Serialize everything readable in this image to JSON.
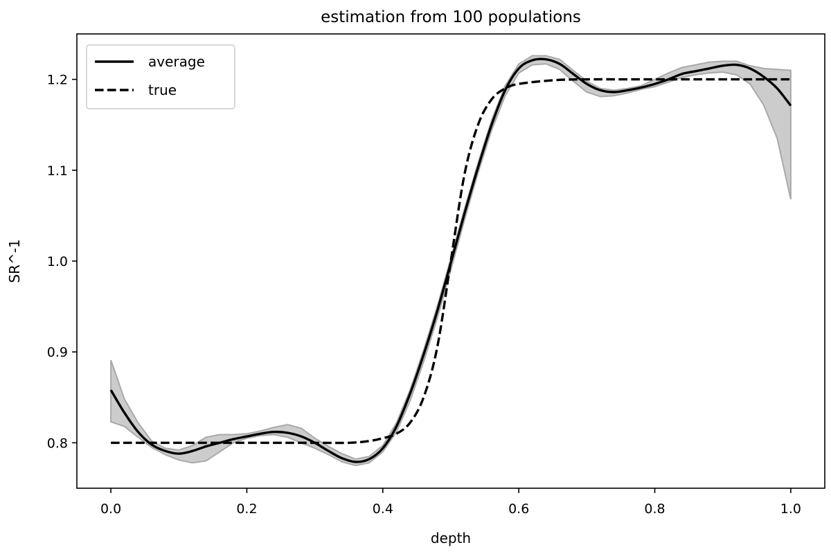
{
  "chart_data": {
    "type": "line",
    "title": "estimation from 100 populations",
    "xlabel": "depth",
    "ylabel": "SR^-1",
    "xlim": [
      -0.05,
      1.05
    ],
    "ylim": [
      0.75,
      1.25
    ],
    "xticks": [
      0.0,
      0.2,
      0.4,
      0.6,
      0.8,
      1.0
    ],
    "xtick_labels": [
      "0.0",
      "0.2",
      "0.4",
      "0.6",
      "0.8",
      "1.0"
    ],
    "yticks": [
      0.8,
      0.9,
      1.0,
      1.1,
      1.2
    ],
    "ytick_labels": [
      "0.8",
      "0.9",
      "1.0",
      "1.1",
      "1.2"
    ],
    "grid": false,
    "legend_position": "top-left",
    "series": [
      {
        "name": "average",
        "style": "solid",
        "color": "#000000",
        "x": [
          0.0,
          0.02,
          0.04,
          0.06,
          0.08,
          0.1,
          0.12,
          0.14,
          0.16,
          0.18,
          0.2,
          0.22,
          0.24,
          0.26,
          0.28,
          0.3,
          0.32,
          0.34,
          0.36,
          0.38,
          0.4,
          0.42,
          0.44,
          0.46,
          0.48,
          0.5,
          0.52,
          0.54,
          0.56,
          0.58,
          0.6,
          0.62,
          0.64,
          0.66,
          0.68,
          0.7,
          0.72,
          0.74,
          0.76,
          0.78,
          0.8,
          0.82,
          0.84,
          0.86,
          0.88,
          0.9,
          0.92,
          0.94,
          0.96,
          0.98,
          1.0
        ],
        "y": [
          0.858,
          0.833,
          0.812,
          0.798,
          0.791,
          0.788,
          0.791,
          0.796,
          0.8,
          0.804,
          0.807,
          0.81,
          0.812,
          0.811,
          0.807,
          0.8,
          0.791,
          0.783,
          0.779,
          0.782,
          0.794,
          0.818,
          0.854,
          0.897,
          0.945,
          0.998,
          1.052,
          1.103,
          1.15,
          1.188,
          1.212,
          1.221,
          1.222,
          1.217,
          1.206,
          1.195,
          1.188,
          1.186,
          1.188,
          1.191,
          1.195,
          1.2,
          1.206,
          1.209,
          1.212,
          1.215,
          1.216,
          1.212,
          1.203,
          1.19,
          1.171
        ]
      },
      {
        "name": "true",
        "style": "dashed",
        "color": "#000000",
        "x": [
          0.0,
          0.2,
          0.3,
          0.35,
          0.38,
          0.4,
          0.42,
          0.44,
          0.46,
          0.48,
          0.5,
          0.52,
          0.54,
          0.56,
          0.58,
          0.6,
          0.65,
          0.7,
          0.8,
          1.0
        ],
        "y": [
          0.8,
          0.8,
          0.8,
          0.8,
          0.802,
          0.805,
          0.81,
          0.822,
          0.85,
          0.905,
          1.0,
          1.095,
          1.15,
          1.178,
          1.19,
          1.195,
          1.199,
          1.2,
          1.2,
          1.2
        ]
      }
    ],
    "band": {
      "color": "#cccccc",
      "edge_color": "#a9a9a9",
      "x": [
        0.0,
        0.02,
        0.04,
        0.06,
        0.08,
        0.1,
        0.12,
        0.14,
        0.16,
        0.18,
        0.2,
        0.22,
        0.24,
        0.26,
        0.28,
        0.3,
        0.32,
        0.34,
        0.36,
        0.38,
        0.4,
        0.42,
        0.44,
        0.46,
        0.48,
        0.5,
        0.52,
        0.54,
        0.56,
        0.58,
        0.6,
        0.62,
        0.64,
        0.66,
        0.68,
        0.7,
        0.72,
        0.74,
        0.76,
        0.78,
        0.8,
        0.82,
        0.84,
        0.86,
        0.88,
        0.9,
        0.92,
        0.94,
        0.96,
        0.98,
        1.0
      ],
      "upper": [
        0.891,
        0.848,
        0.822,
        0.802,
        0.794,
        0.792,
        0.797,
        0.806,
        0.809,
        0.809,
        0.81,
        0.813,
        0.817,
        0.82,
        0.816,
        0.805,
        0.796,
        0.788,
        0.782,
        0.785,
        0.797,
        0.822,
        0.858,
        0.902,
        0.95,
        1.003,
        1.057,
        1.108,
        1.155,
        1.193,
        1.217,
        1.226,
        1.226,
        1.222,
        1.21,
        1.198,
        1.19,
        1.188,
        1.19,
        1.193,
        1.2,
        1.207,
        1.213,
        1.216,
        1.219,
        1.22,
        1.22,
        1.215,
        1.212,
        1.211,
        1.21
      ],
      "lower": [
        0.823,
        0.818,
        0.806,
        0.795,
        0.787,
        0.781,
        0.778,
        0.78,
        0.79,
        0.8,
        0.805,
        0.808,
        0.809,
        0.806,
        0.8,
        0.794,
        0.787,
        0.779,
        0.775,
        0.778,
        0.79,
        0.812,
        0.846,
        0.889,
        0.937,
        0.99,
        1.045,
        1.097,
        1.144,
        1.182,
        1.207,
        1.216,
        1.217,
        1.211,
        1.198,
        1.186,
        1.181,
        1.182,
        1.185,
        1.189,
        1.192,
        1.197,
        1.202,
        1.205,
        1.207,
        1.208,
        1.205,
        1.195,
        1.172,
        1.135,
        1.068
      ]
    }
  }
}
